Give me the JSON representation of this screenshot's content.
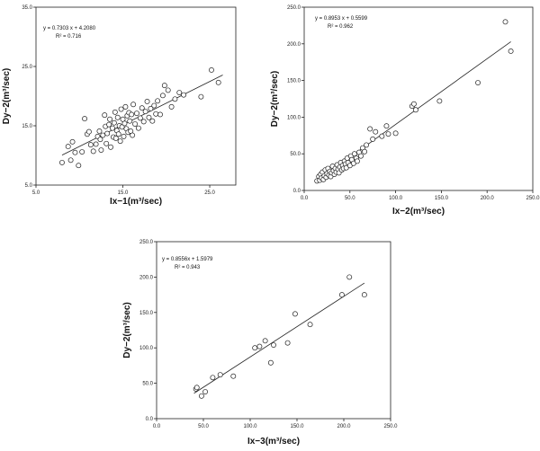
{
  "chart_data": [
    {
      "type": "scatter",
      "xlabel": "Ix−1(m³/sec)",
      "ylabel": "Dy−2(m³/sec)",
      "xlim": [
        5.0,
        28.0
      ],
      "ylim": [
        5.0,
        35.0
      ],
      "xticks": [
        "5.0",
        "15.0",
        "25.0"
      ],
      "yticks": [
        "5.0",
        "15.0",
        "25.0",
        "35.0"
      ],
      "equation": "y = 0.7303 x + 4.2080",
      "r2": "R² = 0.716",
      "fit": {
        "slope": 0.7303,
        "intercept": 4.208,
        "x_range": [
          8.0,
          26.5
        ]
      },
      "points": [
        [
          8.0,
          8.8
        ],
        [
          8.7,
          11.5
        ],
        [
          9.0,
          9.2
        ],
        [
          9.2,
          12.3
        ],
        [
          9.5,
          10.5
        ],
        [
          9.9,
          8.3
        ],
        [
          10.3,
          10.6
        ],
        [
          10.6,
          16.2
        ],
        [
          10.9,
          13.6
        ],
        [
          11.1,
          14.0
        ],
        [
          11.3,
          11.8
        ],
        [
          11.6,
          10.7
        ],
        [
          11.9,
          11.9
        ],
        [
          12.1,
          13.2
        ],
        [
          12.3,
          14.1
        ],
        [
          12.4,
          12.7
        ],
        [
          12.5,
          10.9
        ],
        [
          12.7,
          13.4
        ],
        [
          12.9,
          16.8
        ],
        [
          13.0,
          14.9
        ],
        [
          13.1,
          12.0
        ],
        [
          13.2,
          13.7
        ],
        [
          13.4,
          15.2
        ],
        [
          13.5,
          16.1
        ],
        [
          13.6,
          11.4
        ],
        [
          13.8,
          14.6
        ],
        [
          13.9,
          13.1
        ],
        [
          14.0,
          15.5
        ],
        [
          14.1,
          17.3
        ],
        [
          14.2,
          12.9
        ],
        [
          14.3,
          14.2
        ],
        [
          14.4,
          16.4
        ],
        [
          14.5,
          13.6
        ],
        [
          14.6,
          15.0
        ],
        [
          14.7,
          12.4
        ],
        [
          14.8,
          17.8
        ],
        [
          14.9,
          14.8
        ],
        [
          15.0,
          16.1
        ],
        [
          15.1,
          13.2
        ],
        [
          15.2,
          15.4
        ],
        [
          15.3,
          18.2
        ],
        [
          15.4,
          14.5
        ],
        [
          15.5,
          16.7
        ],
        [
          15.6,
          13.9
        ],
        [
          15.7,
          17.2
        ],
        [
          15.8,
          15.8
        ],
        [
          15.9,
          14.1
        ],
        [
          16.0,
          16.9
        ],
        [
          16.1,
          13.4
        ],
        [
          16.2,
          18.6
        ],
        [
          16.4,
          15.3
        ],
        [
          16.6,
          17.1
        ],
        [
          16.8,
          14.6
        ],
        [
          17.0,
          16.3
        ],
        [
          17.2,
          18.0
        ],
        [
          17.4,
          15.7
        ],
        [
          17.6,
          17.4
        ],
        [
          17.8,
          19.1
        ],
        [
          18.0,
          16.4
        ],
        [
          18.2,
          17.9
        ],
        [
          18.4,
          15.8
        ],
        [
          18.6,
          18.4
        ],
        [
          18.8,
          17.0
        ],
        [
          19.0,
          19.2
        ],
        [
          19.3,
          16.9
        ],
        [
          19.6,
          20.1
        ],
        [
          19.8,
          21.8
        ],
        [
          20.2,
          21.0
        ],
        [
          20.6,
          18.2
        ],
        [
          21.0,
          19.5
        ],
        [
          21.5,
          20.6
        ],
        [
          22.0,
          20.2
        ],
        [
          24.0,
          19.9
        ],
        [
          25.2,
          24.4
        ],
        [
          26.0,
          22.3
        ]
      ]
    },
    {
      "type": "scatter",
      "xlabel": "Ix−2(m³/sec)",
      "ylabel": "Dy−2(m³/sec)",
      "xlim": [
        0.0,
        250.0
      ],
      "ylim": [
        0.0,
        250.0
      ],
      "xticks": [
        "0.0",
        "50.0",
        "100.0",
        "150.0",
        "200.0",
        "250.0"
      ],
      "yticks": [
        "0.0",
        "50.0",
        "100.0",
        "150.0",
        "200.0",
        "250.0"
      ],
      "equation": "y = 0.8953 x + 0.5599",
      "r2": "R² = 0.962",
      "fit": {
        "slope": 0.8953,
        "intercept": 0.5599,
        "x_range": [
          12,
          226
        ]
      },
      "points": [
        [
          14,
          13
        ],
        [
          16,
          19
        ],
        [
          17,
          14
        ],
        [
          18,
          22
        ],
        [
          19,
          17
        ],
        [
          20,
          25
        ],
        [
          21,
          15
        ],
        [
          22,
          20
        ],
        [
          23,
          28
        ],
        [
          24,
          18
        ],
        [
          25,
          23
        ],
        [
          26,
          30
        ],
        [
          27,
          21
        ],
        [
          28,
          26
        ],
        [
          29,
          19
        ],
        [
          30,
          24
        ],
        [
          31,
          33
        ],
        [
          32,
          27
        ],
        [
          33,
          22
        ],
        [
          34,
          30
        ],
        [
          35,
          25
        ],
        [
          36,
          35
        ],
        [
          37,
          29
        ],
        [
          38,
          24
        ],
        [
          39,
          32
        ],
        [
          40,
          38
        ],
        [
          41,
          28
        ],
        [
          42,
          34
        ],
        [
          43,
          30
        ],
        [
          44,
          40
        ],
        [
          45,
          36
        ],
        [
          46,
          31
        ],
        [
          47,
          44
        ],
        [
          48,
          38
        ],
        [
          50,
          34
        ],
        [
          51,
          47
        ],
        [
          52,
          42
        ],
        [
          54,
          37
        ],
        [
          55,
          50
        ],
        [
          57,
          44
        ],
        [
          58,
          40
        ],
        [
          60,
          52
        ],
        [
          62,
          47
        ],
        [
          64,
          58
        ],
        [
          66,
          53
        ],
        [
          68,
          62
        ],
        [
          72,
          84
        ],
        [
          75,
          70
        ],
        [
          78,
          80
        ],
        [
          85,
          74
        ],
        [
          90,
          88
        ],
        [
          92,
          77
        ],
        [
          100,
          78
        ],
        [
          118,
          115
        ],
        [
          120,
          118
        ],
        [
          122,
          110
        ],
        [
          148,
          122
        ],
        [
          190,
          147
        ],
        [
          220,
          230
        ],
        [
          226,
          190
        ]
      ]
    },
    {
      "type": "scatter",
      "xlabel": "Ix−3(m³/sec)",
      "ylabel": "Dy−2(m³/sec)",
      "xlim": [
        0.0,
        250.0
      ],
      "ylim": [
        0.0,
        250.0
      ],
      "xticks": [
        "0.0",
        "50.0",
        "100.0",
        "150.0",
        "200.0",
        "250.0"
      ],
      "yticks": [
        "0.0",
        "50.0",
        "100.0",
        "150.0",
        "200.0",
        "250.0"
      ],
      "equation": "y = 0.8556x + 1.5979",
      "r2": "R² = 0.943",
      "fit": {
        "slope": 0.8556,
        "intercept": 1.5979,
        "x_range": [
          40,
          222
        ]
      },
      "points": [
        [
          42,
          42
        ],
        [
          43,
          44
        ],
        [
          48,
          32
        ],
        [
          52,
          38
        ],
        [
          60,
          58
        ],
        [
          68,
          62
        ],
        [
          82,
          60
        ],
        [
          105,
          100
        ],
        [
          110,
          102
        ],
        [
          116,
          110
        ],
        [
          122,
          79
        ],
        [
          125,
          104
        ],
        [
          140,
          107
        ],
        [
          148,
          148
        ],
        [
          164,
          133
        ],
        [
          198,
          175
        ],
        [
          206,
          200
        ],
        [
          222,
          175
        ]
      ]
    }
  ]
}
